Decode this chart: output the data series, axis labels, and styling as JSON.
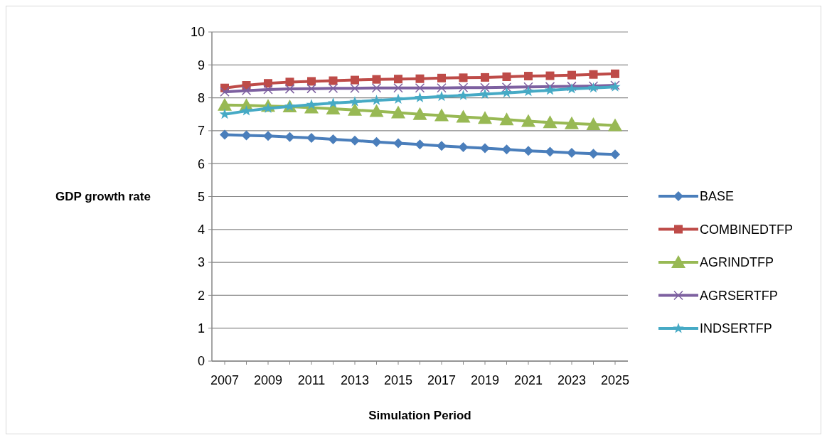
{
  "chart_data": {
    "type": "line",
    "xlabel": "Simulation Period",
    "ylabel": "GDP growth rate",
    "categories": [
      "2007",
      null,
      "2009",
      null,
      "2011",
      null,
      "2013",
      null,
      "2015",
      null,
      "2017",
      null,
      "2019",
      null,
      "2021",
      null,
      "2023",
      null,
      "2025"
    ],
    "ylim": [
      0,
      10
    ],
    "yticks": [
      0,
      1,
      2,
      3,
      4,
      5,
      6,
      7,
      8,
      9,
      10
    ],
    "grid": "y",
    "legend": "right",
    "series": [
      {
        "name": "BASE",
        "color": "#4a7ebb",
        "marker": "diamond",
        "values": [
          6.88,
          6.86,
          6.84,
          6.81,
          6.78,
          6.74,
          6.7,
          6.66,
          6.62,
          6.58,
          6.54,
          6.5,
          6.47,
          6.43,
          6.39,
          6.36,
          6.33,
          6.3,
          6.28
        ]
      },
      {
        "name": "COMBINEDTFP",
        "color": "#be4b48",
        "marker": "square",
        "values": [
          8.3,
          8.38,
          8.44,
          8.48,
          8.5,
          8.52,
          8.54,
          8.56,
          8.57,
          8.58,
          8.6,
          8.61,
          8.62,
          8.64,
          8.66,
          8.67,
          8.69,
          8.71,
          8.73
        ]
      },
      {
        "name": "AGRINDTFP",
        "color": "#98b954",
        "marker": "triangle",
        "values": [
          7.78,
          7.77,
          7.75,
          7.73,
          7.7,
          7.67,
          7.63,
          7.59,
          7.55,
          7.5,
          7.46,
          7.42,
          7.38,
          7.34,
          7.29,
          7.25,
          7.22,
          7.19,
          7.16
        ]
      },
      {
        "name": "AGRSERTFP",
        "color": "#7d60a0",
        "marker": "cross",
        "values": [
          8.18,
          8.22,
          8.25,
          8.27,
          8.28,
          8.29,
          8.29,
          8.3,
          8.3,
          8.3,
          8.3,
          8.31,
          8.31,
          8.32,
          8.33,
          8.34,
          8.35,
          8.36,
          8.38
        ]
      },
      {
        "name": "INDSERTFP",
        "color": "#46aac5",
        "marker": "star",
        "values": [
          7.5,
          7.6,
          7.68,
          7.74,
          7.79,
          7.84,
          7.88,
          7.92,
          7.96,
          8.0,
          8.04,
          8.07,
          8.11,
          8.15,
          8.19,
          8.23,
          8.27,
          8.3,
          8.33
        ]
      }
    ]
  }
}
